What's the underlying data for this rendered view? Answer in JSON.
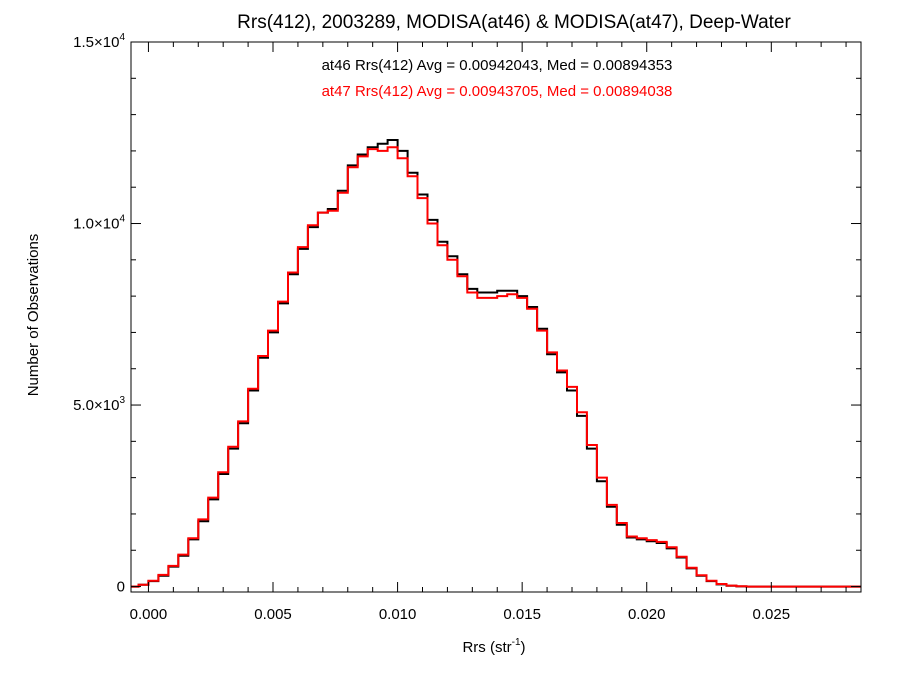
{
  "chart_data": {
    "type": "histogram-step",
    "title": "Rrs(412), 2003289, MODISA(at46) & MODISA(at47), Deep-Water",
    "xlabel": {
      "base": "Rrs (str",
      "sup": "-1",
      "close": ")"
    },
    "ylabel": "Number of Observations",
    "xlim": [
      -0.0007,
      0.0286
    ],
    "ylim": [
      -150,
      15000
    ],
    "x_ticks": [
      {
        "value": 0.0,
        "label": "0.000"
      },
      {
        "value": 0.005,
        "label": "0.005"
      },
      {
        "value": 0.01,
        "label": "0.010"
      },
      {
        "value": 0.015,
        "label": "0.015"
      },
      {
        "value": 0.02,
        "label": "0.020"
      },
      {
        "value": 0.025,
        "label": "0.025"
      }
    ],
    "y_ticks": [
      {
        "value": 0,
        "mant": "0",
        "exp": ""
      },
      {
        "value": 5000,
        "mant": "5.0×10",
        "exp": "3"
      },
      {
        "value": 10000,
        "mant": "1.0×10",
        "exp": "4"
      },
      {
        "value": 15000,
        "mant": "1.5×10",
        "exp": "4"
      }
    ],
    "annotations": [
      {
        "text": "at46 Rrs(412) Avg = 0.00942043, Med = 0.00894353",
        "color": "#000000"
      },
      {
        "text": "at47 Rrs(412) Avg = 0.00943705, Med = 0.00894038",
        "color": "#ff0000"
      }
    ],
    "grid": false,
    "series": [
      {
        "name": "at46",
        "color": "#000000",
        "points": [
          [
            -0.0007,
            0
          ],
          [
            -0.0004,
            50
          ],
          [
            0.0,
            150
          ],
          [
            0.0004,
            300
          ],
          [
            0.0008,
            550
          ],
          [
            0.0012,
            850
          ],
          [
            0.0016,
            1300
          ],
          [
            0.002,
            1800
          ],
          [
            0.0024,
            2400
          ],
          [
            0.0028,
            3100
          ],
          [
            0.0032,
            3800
          ],
          [
            0.0036,
            4500
          ],
          [
            0.004,
            5400
          ],
          [
            0.0044,
            6300
          ],
          [
            0.0048,
            7000
          ],
          [
            0.0052,
            7800
          ],
          [
            0.0056,
            8600
          ],
          [
            0.006,
            9300
          ],
          [
            0.0064,
            9900
          ],
          [
            0.0068,
            10300
          ],
          [
            0.0072,
            10400
          ],
          [
            0.0076,
            10900
          ],
          [
            0.008,
            11600
          ],
          [
            0.0084,
            11900
          ],
          [
            0.0088,
            12100
          ],
          [
            0.0092,
            12200
          ],
          [
            0.0096,
            12300
          ],
          [
            0.01,
            12000
          ],
          [
            0.0104,
            11400
          ],
          [
            0.0108,
            10800
          ],
          [
            0.0112,
            10100
          ],
          [
            0.0116,
            9500
          ],
          [
            0.012,
            9100
          ],
          [
            0.0124,
            8600
          ],
          [
            0.0128,
            8200
          ],
          [
            0.0132,
            8100
          ],
          [
            0.0136,
            8100
          ],
          [
            0.014,
            8150
          ],
          [
            0.0144,
            8150
          ],
          [
            0.0148,
            8000
          ],
          [
            0.0152,
            7700
          ],
          [
            0.0156,
            7100
          ],
          [
            0.016,
            6400
          ],
          [
            0.0164,
            5900
          ],
          [
            0.0168,
            5400
          ],
          [
            0.0172,
            4700
          ],
          [
            0.0176,
            3800
          ],
          [
            0.018,
            2900
          ],
          [
            0.0184,
            2200
          ],
          [
            0.0188,
            1700
          ],
          [
            0.0192,
            1350
          ],
          [
            0.0196,
            1300
          ],
          [
            0.02,
            1250
          ],
          [
            0.0204,
            1200
          ],
          [
            0.0208,
            1050
          ],
          [
            0.0212,
            800
          ],
          [
            0.0216,
            500
          ],
          [
            0.022,
            300
          ],
          [
            0.0224,
            150
          ],
          [
            0.0228,
            60
          ],
          [
            0.0232,
            20
          ],
          [
            0.0236,
            5
          ],
          [
            0.024,
            0
          ],
          [
            0.0286,
            0
          ]
        ]
      },
      {
        "name": "at47",
        "color": "#ff0000",
        "points": [
          [
            -0.0007,
            0
          ],
          [
            -0.0004,
            50
          ],
          [
            0.0,
            160
          ],
          [
            0.0004,
            320
          ],
          [
            0.0008,
            570
          ],
          [
            0.0012,
            880
          ],
          [
            0.0016,
            1330
          ],
          [
            0.002,
            1850
          ],
          [
            0.0024,
            2450
          ],
          [
            0.0028,
            3150
          ],
          [
            0.0032,
            3850
          ],
          [
            0.0036,
            4550
          ],
          [
            0.004,
            5450
          ],
          [
            0.0044,
            6350
          ],
          [
            0.0048,
            7050
          ],
          [
            0.0052,
            7850
          ],
          [
            0.0056,
            8650
          ],
          [
            0.006,
            9350
          ],
          [
            0.0064,
            9950
          ],
          [
            0.0068,
            10300
          ],
          [
            0.0072,
            10350
          ],
          [
            0.0076,
            10850
          ],
          [
            0.008,
            11550
          ],
          [
            0.0084,
            11850
          ],
          [
            0.0088,
            12050
          ],
          [
            0.0092,
            12000
          ],
          [
            0.0096,
            12100
          ],
          [
            0.01,
            11800
          ],
          [
            0.0104,
            11300
          ],
          [
            0.0108,
            10700
          ],
          [
            0.0112,
            10000
          ],
          [
            0.0116,
            9400
          ],
          [
            0.012,
            9000
          ],
          [
            0.0124,
            8550
          ],
          [
            0.0128,
            8100
          ],
          [
            0.0132,
            7950
          ],
          [
            0.0136,
            7950
          ],
          [
            0.014,
            8000
          ],
          [
            0.0144,
            8050
          ],
          [
            0.0148,
            7950
          ],
          [
            0.0152,
            7650
          ],
          [
            0.0156,
            7050
          ],
          [
            0.016,
            6450
          ],
          [
            0.0164,
            5950
          ],
          [
            0.0168,
            5500
          ],
          [
            0.0172,
            4800
          ],
          [
            0.0176,
            3900
          ],
          [
            0.018,
            3000
          ],
          [
            0.0184,
            2250
          ],
          [
            0.0188,
            1750
          ],
          [
            0.0192,
            1380
          ],
          [
            0.0196,
            1330
          ],
          [
            0.02,
            1280
          ],
          [
            0.0204,
            1230
          ],
          [
            0.0208,
            1080
          ],
          [
            0.0212,
            820
          ],
          [
            0.0216,
            520
          ],
          [
            0.022,
            310
          ],
          [
            0.0224,
            160
          ],
          [
            0.0228,
            70
          ],
          [
            0.0232,
            25
          ],
          [
            0.0236,
            8
          ],
          [
            0.024,
            0
          ],
          [
            0.0286,
            0
          ]
        ]
      }
    ]
  }
}
